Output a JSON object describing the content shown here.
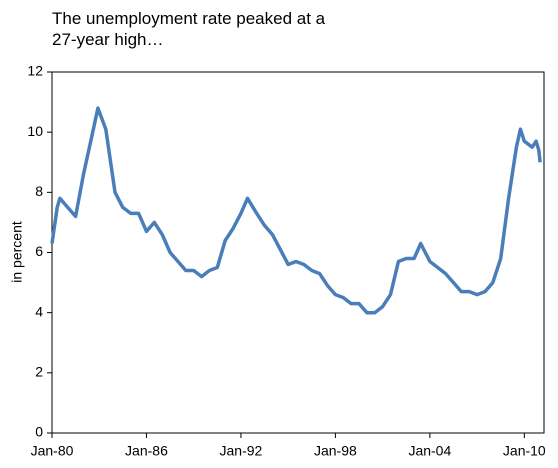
{
  "chart_data": {
    "type": "line",
    "title": "The unemployment rate peaked at a 27-year high…",
    "y_label": "in percent",
    "color": "#4a7ebb",
    "x": [
      "Jan-80",
      "May-80",
      "Jul-80",
      "Jan-81",
      "Jul-81",
      "Jan-82",
      "Jul-82",
      "Dec-82",
      "Jun-83",
      "Jan-84",
      "Jul-84",
      "Jan-85",
      "Jul-85",
      "Jan-86",
      "Jul-86",
      "Jan-87",
      "Jul-87",
      "Jan-88",
      "Jul-88",
      "Jan-89",
      "Jul-89",
      "Jan-90",
      "Jul-90",
      "Jan-91",
      "Jul-91",
      "Jan-92",
      "Jun-92",
      "Jan-93",
      "Jul-93",
      "Jan-94",
      "Jul-94",
      "Jan-95",
      "Jul-95",
      "Jan-96",
      "Jul-96",
      "Jan-97",
      "Jul-97",
      "Jan-98",
      "Jul-98",
      "Jan-99",
      "Jul-99",
      "Jan-00",
      "Jul-00",
      "Jan-01",
      "Jul-01",
      "Jan-02",
      "Jul-02",
      "Jan-03",
      "Jun-03",
      "Jan-04",
      "Jul-04",
      "Jan-05",
      "Jul-05",
      "Jan-06",
      "Jul-06",
      "Jan-07",
      "Jul-07",
      "Jan-08",
      "Jul-08",
      "Jan-09",
      "Jul-09",
      "Oct-09",
      "Jan-10",
      "Jul-10",
      "Oct-10",
      "Dec-10",
      "Jan-11"
    ],
    "values": [
      6.3,
      7.5,
      7.8,
      7.5,
      7.2,
      8.6,
      9.8,
      10.8,
      10.1,
      8.0,
      7.5,
      7.3,
      7.3,
      6.7,
      7.0,
      6.6,
      6.0,
      5.7,
      5.4,
      5.4,
      5.2,
      5.4,
      5.5,
      6.4,
      6.8,
      7.3,
      7.8,
      7.3,
      6.9,
      6.6,
      6.1,
      5.6,
      5.7,
      5.6,
      5.4,
      5.3,
      4.9,
      4.6,
      4.5,
      4.3,
      4.3,
      4.0,
      4.0,
      4.2,
      4.6,
      5.7,
      5.8,
      5.8,
      6.3,
      5.7,
      5.5,
      5.3,
      5.0,
      4.7,
      4.7,
      4.6,
      4.7,
      5.0,
      5.8,
      7.8,
      9.5,
      10.1,
      9.7,
      9.5,
      9.7,
      9.4,
      9.0
    ],
    "xlim": [
      "Jan-80",
      "Apr-11"
    ],
    "xticks": [
      "Jan-80",
      "Jan-86",
      "Jan-92",
      "Jan-98",
      "Jan-04",
      "Jan-10"
    ],
    "ylim": [
      0,
      12
    ],
    "yticks": [
      0,
      2,
      4,
      6,
      8,
      10,
      12
    ]
  }
}
